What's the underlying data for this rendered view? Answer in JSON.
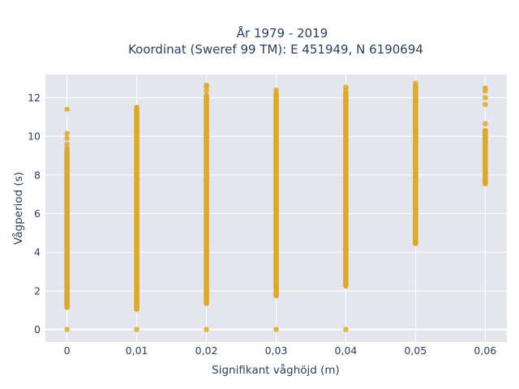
{
  "chart_data": {
    "type": "scatter",
    "title": [
      "År 1979 - 2019",
      "Koordinat (Sweref 99 TM): E 451949, N 6190694"
    ],
    "xlabel": "Signifikant våghöjd (m)",
    "ylabel": "Vågperiod (s)",
    "xlim": [
      -0.0031,
      0.0631
    ],
    "ylim": [
      -0.65,
      13.2
    ],
    "x_ticks": [
      0,
      0.01,
      0.02,
      0.03,
      0.04,
      0.05,
      0.06
    ],
    "x_tick_labels": [
      "0",
      "0,01",
      "0,02",
      "0,03",
      "0,04",
      "0,05",
      "0,06"
    ],
    "y_ticks": [
      0,
      2,
      4,
      6,
      8,
      10,
      12
    ],
    "y_tick_labels": [
      "0",
      "2",
      "4",
      "6",
      "8",
      "10",
      "12"
    ],
    "grid": true,
    "marker_color": "#daa520",
    "plot_background": "#e5e5ee",
    "columns": [
      {
        "x": 0,
        "ranges": [
          [
            1.15,
            9.3
          ]
        ],
        "points": [
          0,
          9.4,
          9.6,
          9.9,
          10.15,
          11.4
        ]
      },
      {
        "x": 0.01,
        "ranges": [
          [
            1.05,
            11.5
          ]
        ],
        "points": [
          0
        ]
      },
      {
        "x": 0.02,
        "ranges": [
          [
            1.35,
            12.1
          ]
        ],
        "points": [
          0,
          12.35,
          12.55,
          12.65
        ]
      },
      {
        "x": 0.03,
        "ranges": [
          [
            1.75,
            12.2
          ]
        ],
        "points": [
          0,
          12.4
        ]
      },
      {
        "x": 0.04,
        "ranges": [
          [
            2.25,
            12.25
          ]
        ],
        "points": [
          0,
          12.4,
          12.55
        ]
      },
      {
        "x": 0.05,
        "ranges": [
          [
            4.45,
            12.6
          ]
        ],
        "points": [
          12.75
        ]
      },
      {
        "x": 0.06,
        "ranges": [
          [
            7.55,
            10.3
          ]
        ],
        "points": [
          10.65,
          11.65,
          12.0,
          12.35,
          12.5
        ]
      }
    ]
  }
}
